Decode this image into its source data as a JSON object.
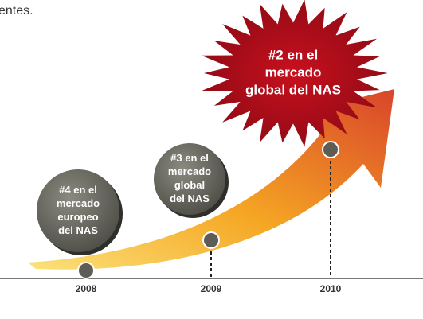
{
  "header": {
    "text": "entes."
  },
  "milestones": [
    {
      "year": "2008",
      "label": [
        "#4 en el",
        "mercado",
        "europeo",
        "del NAS"
      ]
    },
    {
      "year": "2009",
      "label": [
        "#3 en el",
        "mercado",
        "global",
        "del NAS"
      ]
    },
    {
      "year": "2010",
      "label": [
        "#2 en el",
        "mercado",
        "global del NAS"
      ]
    }
  ]
}
